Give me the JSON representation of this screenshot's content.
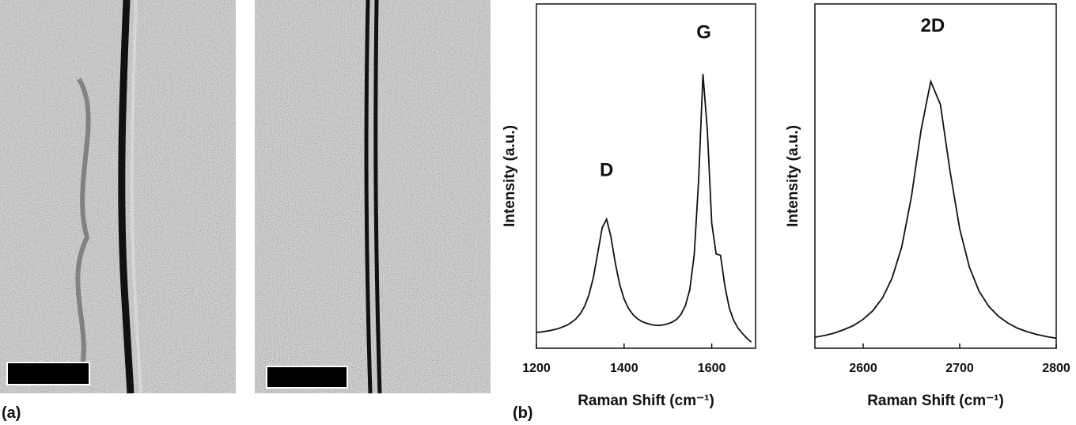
{
  "panel_labels": [
    "(a)",
    "(b)"
  ],
  "chart_data": [
    {
      "type": "line",
      "x_label": "Raman Shift (cm⁻¹)",
      "y_label": "Intensity (a.u.)",
      "xlim": [
        1200,
        1700
      ],
      "xticks": [
        1200,
        1400,
        1600
      ],
      "ylim": [
        0,
        100
      ],
      "annotations": [
        {
          "text": "D",
          "x": 1360,
          "y": 50
        },
        {
          "text": "G",
          "x": 1582,
          "y": 90
        }
      ],
      "series": [
        {
          "color": "#111111",
          "x": [
            1200,
            1210,
            1220,
            1230,
            1240,
            1250,
            1260,
            1270,
            1280,
            1290,
            1300,
            1310,
            1320,
            1330,
            1340,
            1350,
            1360,
            1370,
            1380,
            1390,
            1400,
            1410,
            1420,
            1430,
            1440,
            1450,
            1460,
            1470,
            1480,
            1490,
            1500,
            1510,
            1520,
            1530,
            1540,
            1550,
            1560,
            1570,
            1580,
            1590,
            1600,
            1610,
            1620,
            1630,
            1640,
            1650,
            1660,
            1670,
            1680,
            1690
          ],
          "values": [
            4.6,
            4.7,
            4.9,
            5.1,
            5.4,
            5.7,
            6.2,
            6.7,
            7.5,
            8.5,
            10.0,
            12.2,
            15.6,
            20.6,
            27.7,
            35.0,
            37.5,
            32.4,
            24.7,
            18.5,
            14.3,
            11.6,
            9.8,
            8.6,
            7.8,
            7.3,
            6.9,
            6.7,
            6.6,
            6.8,
            7.1,
            7.6,
            8.4,
            9.9,
            12.4,
            17.1,
            27.1,
            48.6,
            79.6,
            63.2,
            36.3,
            27.4,
            27.0,
            18.0,
            11.7,
            8.1,
            5.8,
            4.3,
            2.9,
            1.8
          ]
        }
      ]
    },
    {
      "type": "line",
      "x_label": "Raman Shift (cm⁻¹)",
      "y_label": "Intensity (a.u.)",
      "xlim": [
        2550,
        2800
      ],
      "xticks": [
        2600,
        2700,
        2800
      ],
      "ylim": [
        0,
        100
      ],
      "annotations": [
        {
          "text": "2D",
          "x": 2672,
          "y": 92
        }
      ],
      "series": [
        {
          "color": "#111111",
          "x": [
            2550,
            2560,
            2570,
            2580,
            2590,
            2600,
            2610,
            2620,
            2630,
            2640,
            2650,
            2660,
            2670,
            2680,
            2690,
            2700,
            2710,
            2720,
            2730,
            2740,
            2750,
            2760,
            2770,
            2780,
            2790,
            2800
          ],
          "values": [
            3.2,
            3.7,
            4.4,
            5.4,
            6.6,
            8.4,
            10.9,
            14.6,
            20.4,
            29.5,
            44.0,
            63.4,
            77.5,
            70.8,
            51.4,
            34.7,
            23.6,
            16.6,
            12.2,
            9.3,
            7.3,
            5.8,
            4.8,
            4.0,
            3.4,
            2.9
          ]
        }
      ]
    }
  ]
}
